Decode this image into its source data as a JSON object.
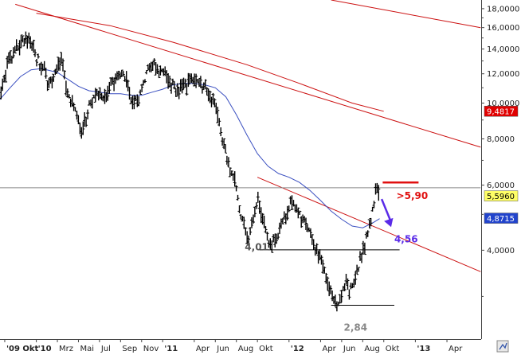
{
  "chart_data": {
    "type": "bar",
    "subtype": "ohlc",
    "log_scale": true,
    "ylim": [
      2.3,
      19.0
    ],
    "y_ticks": [
      {
        "v": 18,
        "label": "18,0000"
      },
      {
        "v": 16,
        "label": "16,0000"
      },
      {
        "v": 14,
        "label": "14,0000"
      },
      {
        "v": 12,
        "label": "12,0000"
      },
      {
        "v": 10,
        "label": "10,0000"
      },
      {
        "v": 8,
        "label": "8,0000"
      },
      {
        "v": 6,
        "label": "6,0000"
      },
      {
        "v": 4,
        "label": "4,0000"
      }
    ],
    "x_ticks": [
      {
        "t": 0.0,
        "label": "'09 Okt",
        "bold": true
      },
      {
        "t": 3.0,
        "label": "'10",
        "bold": true
      },
      {
        "t": 5.0,
        "label": "Mrz",
        "bold": false
      },
      {
        "t": 7.0,
        "label": "Mai",
        "bold": false
      },
      {
        "t": 9.0,
        "label": "Jul",
        "bold": false
      },
      {
        "t": 11.0,
        "label": "Sep",
        "bold": false
      },
      {
        "t": 13.0,
        "label": "Nov",
        "bold": false
      },
      {
        "t": 15.0,
        "label": "'11",
        "bold": true
      },
      {
        "t": 18.0,
        "label": "Apr",
        "bold": false
      },
      {
        "t": 20.0,
        "label": "Jun",
        "bold": false
      },
      {
        "t": 22.0,
        "label": "Aug",
        "bold": false
      },
      {
        "t": 24.0,
        "label": "Okt",
        "bold": false
      },
      {
        "t": 27.0,
        "label": "'12",
        "bold": true
      },
      {
        "t": 30.0,
        "label": "Apr",
        "bold": false
      },
      {
        "t": 32.0,
        "label": "Jun",
        "bold": false
      },
      {
        "t": 34.0,
        "label": "Aug",
        "bold": false
      },
      {
        "t": 36.0,
        "label": "Okt",
        "bold": false
      },
      {
        "t": 39.0,
        "label": "'13",
        "bold": true
      },
      {
        "t": 42.0,
        "label": "Apr",
        "bold": false
      }
    ],
    "price_path": [
      [
        -0.5,
        10.3
      ],
      [
        0.3,
        13.0
      ],
      [
        1.0,
        13.8
      ],
      [
        1.6,
        14.5
      ],
      [
        2.3,
        15.2
      ],
      [
        2.9,
        13.5
      ],
      [
        3.3,
        12.8
      ],
      [
        3.8,
        12.2
      ],
      [
        4.2,
        11.3
      ],
      [
        4.6,
        11.6
      ],
      [
        5.0,
        12.6
      ],
      [
        5.5,
        13.0
      ],
      [
        5.9,
        10.6
      ],
      [
        6.4,
        10.0
      ],
      [
        6.9,
        9.2
      ],
      [
        7.3,
        8.3
      ],
      [
        7.8,
        9.3
      ],
      [
        8.2,
        10.1
      ],
      [
        8.8,
        10.8
      ],
      [
        9.3,
        10.3
      ],
      [
        10.0,
        11.0
      ],
      [
        10.6,
        11.6
      ],
      [
        11.2,
        11.9
      ],
      [
        11.7,
        11.2
      ],
      [
        12.2,
        9.8
      ],
      [
        12.6,
        10.1
      ],
      [
        13.2,
        11.5
      ],
      [
        13.7,
        12.3
      ],
      [
        14.2,
        12.7
      ],
      [
        14.7,
        12.1
      ],
      [
        15.3,
        12.0
      ],
      [
        15.9,
        11.3
      ],
      [
        16.5,
        10.8
      ],
      [
        17.2,
        11.2
      ],
      [
        17.8,
        11.8
      ],
      [
        18.4,
        11.2
      ],
      [
        18.9,
        10.9
      ],
      [
        19.3,
        10.7
      ],
      [
        19.8,
        10.2
      ],
      [
        20.2,
        9.2
      ],
      [
        20.6,
        8.2
      ],
      [
        21.0,
        7.3
      ],
      [
        21.4,
        6.7
      ],
      [
        21.8,
        6.3
      ],
      [
        22.1,
        5.6
      ],
      [
        22.4,
        5.0
      ],
      [
        22.8,
        4.6
      ],
      [
        23.2,
        4.3
      ],
      [
        23.6,
        4.9
      ],
      [
        24.0,
        5.6
      ],
      [
        24.4,
        5.0
      ],
      [
        24.9,
        4.4
      ],
      [
        25.3,
        4.1
      ],
      [
        25.8,
        4.3
      ],
      [
        26.3,
        4.7
      ],
      [
        26.8,
        5.1
      ],
      [
        27.3,
        5.5
      ],
      [
        27.7,
        5.2
      ],
      [
        28.2,
        4.9
      ],
      [
        28.7,
        4.6
      ],
      [
        29.2,
        4.3
      ],
      [
        29.6,
        4.0
      ],
      [
        30.1,
        3.7
      ],
      [
        30.5,
        3.4
      ],
      [
        30.9,
        3.1
      ],
      [
        31.3,
        2.9
      ],
      [
        31.6,
        2.85
      ],
      [
        32.0,
        3.05
      ],
      [
        32.4,
        3.25
      ],
      [
        32.8,
        3.1
      ],
      [
        33.2,
        3.3
      ],
      [
        33.6,
        3.6
      ],
      [
        34.0,
        3.95
      ],
      [
        34.4,
        4.3
      ],
      [
        34.8,
        4.8
      ],
      [
        35.1,
        5.5
      ],
      [
        35.35,
        5.95
      ],
      [
        35.6,
        5.6
      ]
    ],
    "ma_path": [
      [
        -0.5,
        10.2
      ],
      [
        0.5,
        11.0
      ],
      [
        1.5,
        11.8
      ],
      [
        2.5,
        12.3
      ],
      [
        3.5,
        12.4
      ],
      [
        5.0,
        12.1
      ],
      [
        6.0,
        11.6
      ],
      [
        7.0,
        11.1
      ],
      [
        8.0,
        10.8
      ],
      [
        9.0,
        10.7
      ],
      [
        10.0,
        10.6
      ],
      [
        11.0,
        10.6
      ],
      [
        12.0,
        10.5
      ],
      [
        13.0,
        10.5
      ],
      [
        14.0,
        10.7
      ],
      [
        15.0,
        10.9
      ],
      [
        16.0,
        11.2
      ],
      [
        17.0,
        11.3
      ],
      [
        18.0,
        11.3
      ],
      [
        19.0,
        11.2
      ],
      [
        20.0,
        11.0
      ],
      [
        21.0,
        10.4
      ],
      [
        22.0,
        9.3
      ],
      [
        23.0,
        8.2
      ],
      [
        24.0,
        7.3
      ],
      [
        25.0,
        6.75
      ],
      [
        26.0,
        6.45
      ],
      [
        27.0,
        6.3
      ],
      [
        28.0,
        6.1
      ],
      [
        29.0,
        5.8
      ],
      [
        30.0,
        5.45
      ],
      [
        31.0,
        5.1
      ],
      [
        32.0,
        4.85
      ],
      [
        33.0,
        4.65
      ],
      [
        34.0,
        4.6
      ],
      [
        35.0,
        4.75
      ],
      [
        35.6,
        4.87
      ]
    ],
    "ma_color": "#3a4fc0",
    "trendlines": [
      {
        "name": "long-downtrend",
        "color": "#cc1111",
        "points": [
          [
            1.0,
            18.5
          ],
          [
            45.2,
            7.6
          ]
        ]
      },
      {
        "name": "upper-channel",
        "color": "#cc1111",
        "points": [
          [
            3.0,
            17.5
          ],
          [
            10.0,
            16.2
          ],
          [
            16.0,
            14.6
          ],
          [
            23.0,
            12.7
          ],
          [
            28.0,
            11.3
          ],
          [
            33.0,
            10.0
          ],
          [
            36.0,
            9.5
          ]
        ]
      },
      {
        "name": "upper-right-line",
        "color": "#cc1111",
        "points": [
          [
            31.0,
            19.0
          ],
          [
            45.2,
            16.0
          ]
        ]
      },
      {
        "name": "falling-resistance",
        "color": "#cc1111",
        "points": [
          [
            24.0,
            6.3
          ],
          [
            45.2,
            3.5
          ]
        ]
      },
      {
        "name": "horizontal-5.90",
        "color": "#888888",
        "points": [
          [
            -0.5,
            5.9
          ],
          [
            45.2,
            5.9
          ]
        ]
      },
      {
        "name": "support-4.01",
        "color": "#000000",
        "points": [
          [
            24.2,
            4.01
          ],
          [
            37.5,
            4.01
          ]
        ]
      },
      {
        "name": "low-2.84",
        "color": "#000000",
        "points": [
          [
            31.0,
            2.84
          ],
          [
            37.0,
            2.84
          ]
        ]
      },
      {
        "name": "target-red",
        "color": "#e01010",
        "points": [
          [
            35.9,
            6.1
          ],
          [
            39.3,
            6.1
          ]
        ]
      }
    ],
    "arrow": {
      "color": "#5a2be8",
      "from": [
        35.8,
        5.5
      ],
      "to": [
        36.7,
        4.62
      ]
    },
    "annotations": [
      {
        "label": "4,01",
        "t": 22.8,
        "v": 4.0,
        "color": "#555555"
      },
      {
        "label": "2,84",
        "t": 32.2,
        "v": 2.42,
        "color": "#888888"
      },
      {
        "label": ">5,90",
        "t": 37.2,
        "v": 5.5,
        "color": "#e01010"
      },
      {
        "label": "4,56",
        "t": 37.0,
        "v": 4.2,
        "color": "#5a2be8"
      }
    ],
    "price_badges": [
      {
        "label": "9,4817",
        "v": 9.4817,
        "bg": "#e00000",
        "fg": "#ffffff"
      },
      {
        "label": "5,5960",
        "v": 5.596,
        "bg": "#ffff66",
        "fg": "#000000"
      },
      {
        "label": "4,8715",
        "v": 4.8715,
        "bg": "#2244cc",
        "fg": "#ffffff"
      }
    ],
    "grid": false,
    "legend": "none"
  }
}
